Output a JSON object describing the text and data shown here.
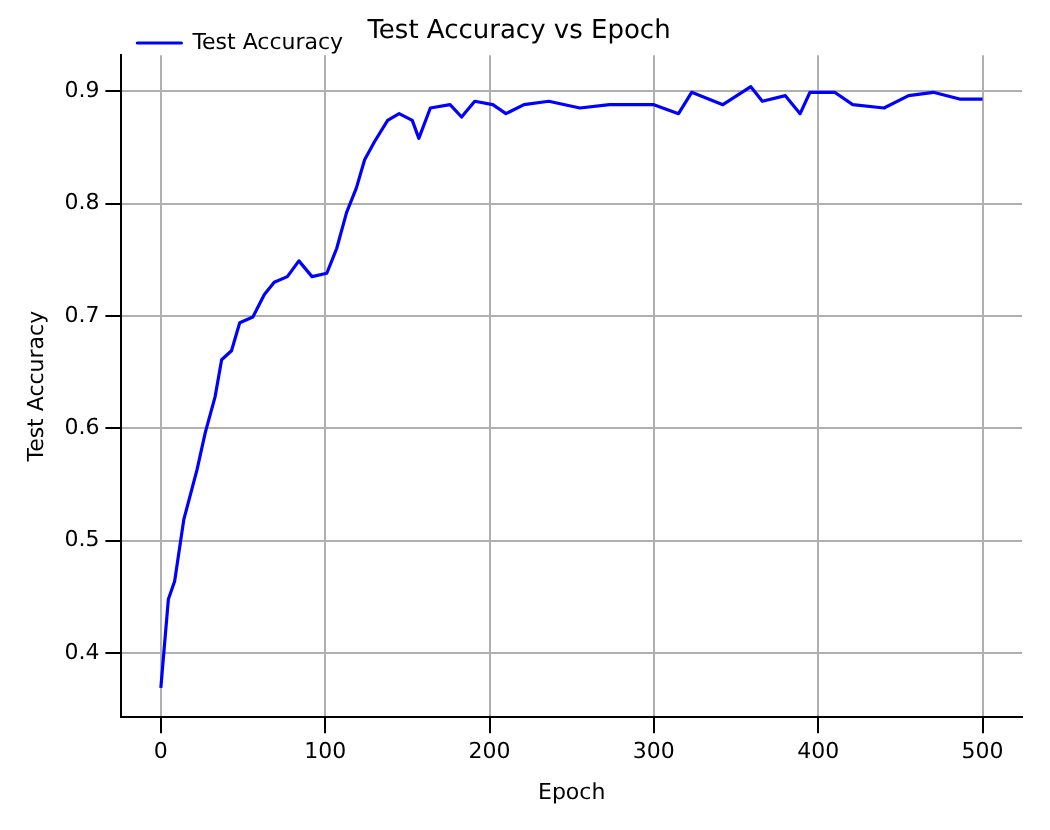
{
  "chart_data": {
    "type": "line",
    "title": "Test Accuracy vs Epoch",
    "xlabel": "Epoch",
    "ylabel": "Test Accuracy",
    "xlim": [
      -24,
      524
    ],
    "ylim": [
      0.343,
      0.932
    ],
    "xticks": [
      0,
      100,
      200,
      300,
      400,
      500
    ],
    "yticks": [
      0.4,
      0.5,
      0.6,
      0.7,
      0.8,
      0.9
    ],
    "grid": true,
    "legend": "top left",
    "marker": "none",
    "line_style": "solid",
    "series": [
      {
        "name": "Test Accuracy",
        "color": "#0000ff",
        "x": [
          0,
          4.6,
          8.4,
          14,
          18,
          22,
          27,
          33,
          37,
          43,
          48,
          56,
          63,
          69,
          77,
          84,
          92,
          101,
          107,
          113,
          119,
          124,
          130,
          138,
          145,
          153,
          157,
          164,
          176,
          183,
          191,
          202,
          210,
          221,
          236,
          255,
          273,
          300,
          315,
          323,
          342,
          359,
          366,
          380,
          389,
          395,
          410,
          421,
          440,
          455,
          470,
          486,
          500
        ],
        "values": [
          0.369,
          0.448,
          0.464,
          0.519,
          0.541,
          0.563,
          0.596,
          0.628,
          0.661,
          0.669,
          0.694,
          0.699,
          0.719,
          0.73,
          0.735,
          0.749,
          0.735,
          0.738,
          0.76,
          0.792,
          0.814,
          0.839,
          0.855,
          0.874,
          0.88,
          0.874,
          0.858,
          0.885,
          0.888,
          0.877,
          0.891,
          0.888,
          0.88,
          0.888,
          0.891,
          0.885,
          0.888,
          0.888,
          0.88,
          0.899,
          0.888,
          0.904,
          0.891,
          0.896,
          0.88,
          0.899,
          0.899,
          0.888,
          0.885,
          0.896,
          0.899,
          0.893,
          0.893
        ]
      }
    ]
  }
}
